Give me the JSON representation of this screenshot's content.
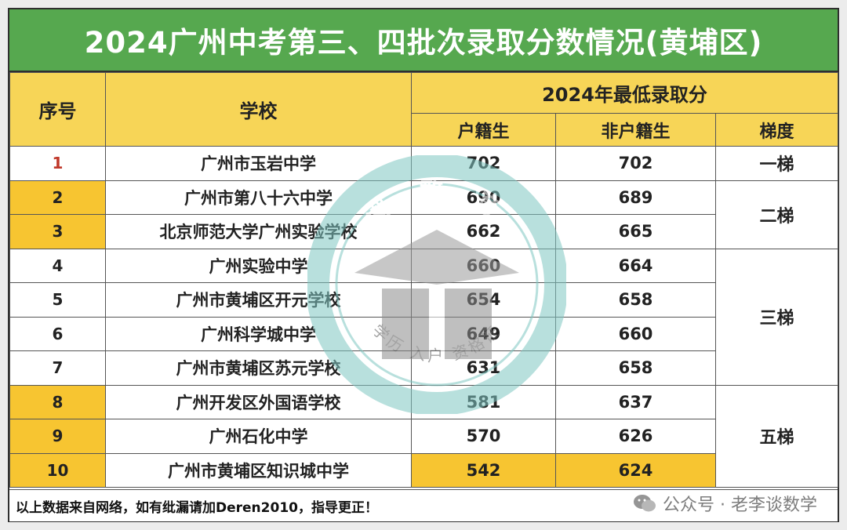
{
  "title": "2024广州中考第三、四批次录取分数情况(黄埔区)",
  "headers": {
    "index": "序号",
    "school": "学校",
    "min_score_group": "2024年最低录取分",
    "local": "户籍生",
    "nonlocal": "非户籍生",
    "tier": "梯度"
  },
  "rows": [
    {
      "index": "1",
      "school": "广州市玉岩中学",
      "local": "702",
      "nonlocal": "702"
    },
    {
      "index": "2",
      "school": "广州市第八十六中学",
      "local": "690",
      "nonlocal": "689"
    },
    {
      "index": "3",
      "school": "北京师范大学广州实验学校",
      "local": "662",
      "nonlocal": "665"
    },
    {
      "index": "4",
      "school": "广州实验中学",
      "local": "660",
      "nonlocal": "664"
    },
    {
      "index": "5",
      "school": "广州市黄埔区开元学校",
      "local": "654",
      "nonlocal": "658"
    },
    {
      "index": "6",
      "school": "广州科学城中学",
      "local": "649",
      "nonlocal": "660"
    },
    {
      "index": "7",
      "school": "广州市黄埔区苏元学校",
      "local": "631",
      "nonlocal": "658"
    },
    {
      "index": "8",
      "school": "广州开发区外国语学校",
      "local": "581",
      "nonlocal": "637"
    },
    {
      "index": "9",
      "school": "广州石化中学",
      "local": "570",
      "nonlocal": "626"
    },
    {
      "index": "10",
      "school": "广州市黄埔区知识城中学",
      "local": "542",
      "nonlocal": "624"
    }
  ],
  "tiers": [
    "一梯",
    "二梯",
    "三梯",
    "五梯"
  ],
  "footer_note": "以上数据来自网络，如有纰漏请加Deren2010，指导更正！",
  "watermark": {
    "top_text": "潮 教 育",
    "bottom_text": "学历 入户 资格证"
  },
  "wechat_handle": "公众号 · 老李谈数学",
  "colors": {
    "title_bg": "#56a84f",
    "header_bg": "#f7d557",
    "highlight": "#f7c531",
    "index_red": "#c0392b"
  }
}
